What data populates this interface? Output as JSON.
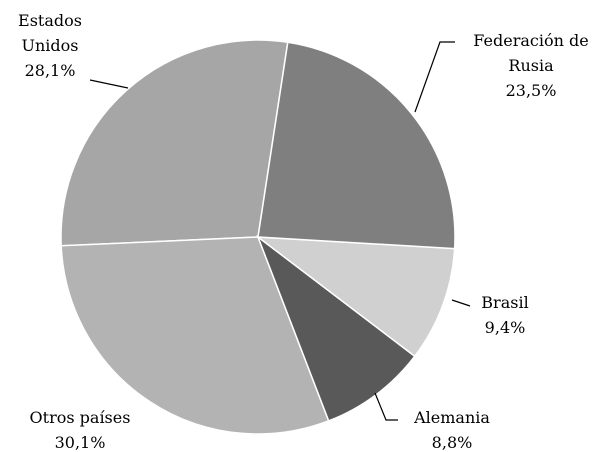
{
  "chart_data": {
    "type": "pie",
    "categories": [
      "Federación de Rusia",
      "Brasil",
      "Alemania",
      "Otros países",
      "Estados Unidos"
    ],
    "values": [
      23.5,
      9.4,
      8.8,
      30.1,
      28.1
    ],
    "value_labels": [
      "23,5%",
      "9,4%",
      "8,8%",
      "30,1%",
      "28,1%"
    ],
    "colors": [
      "#7f7f7f",
      "#d0d0d0",
      "#595959",
      "#b3b3b3",
      "#a6a6a6"
    ]
  }
}
